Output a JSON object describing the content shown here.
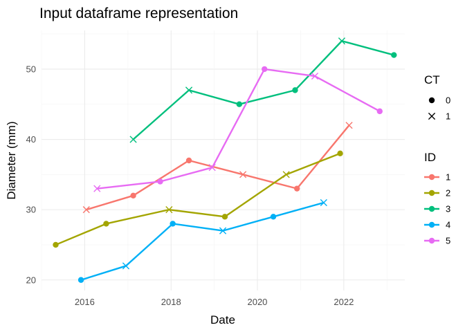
{
  "chart_data": {
    "type": "line",
    "title": "Input dataframe representation",
    "xlabel": "Date",
    "ylabel": "Diameter (mm)",
    "x_axis_type": "date",
    "xlim": [
      "2015-01-01",
      "2023-06-01"
    ],
    "ylim": [
      18.5,
      55.5
    ],
    "x_ticks": [
      "2016-01-01",
      "2018-01-01",
      "2020-01-01",
      "2022-01-01"
    ],
    "x_tick_labels": [
      "2016",
      "2018",
      "2020",
      "2022"
    ],
    "y_ticks": [
      20,
      30,
      40,
      50
    ],
    "y_tick_labels": [
      "20",
      "30",
      "40",
      "50"
    ],
    "grid": true,
    "legends": [
      {
        "title": "CT",
        "kind": "shape",
        "placement": "right",
        "entries": [
          {
            "label": "0",
            "shape": "circle"
          },
          {
            "label": "1",
            "shape": "cross"
          }
        ]
      },
      {
        "title": "ID",
        "kind": "color",
        "placement": "right",
        "entries": [
          {
            "label": "1",
            "color": "#F8766D"
          },
          {
            "label": "2",
            "color": "#A3A500"
          },
          {
            "label": "3",
            "color": "#00BF7D"
          },
          {
            "label": "4",
            "color": "#00B0F6"
          },
          {
            "label": "5",
            "color": "#E76BF3"
          }
        ]
      }
    ],
    "series": [
      {
        "name": "1",
        "color": "#F8766D",
        "points": [
          {
            "x": "2016-01-15",
            "y": 30,
            "ct": 1
          },
          {
            "x": "2017-02-15",
            "y": 32,
            "ct": 0
          },
          {
            "x": "2018-06-01",
            "y": 37,
            "ct": 0
          },
          {
            "x": "2019-09-01",
            "y": 35,
            "ct": 1
          },
          {
            "x": "2020-12-01",
            "y": 33,
            "ct": 0
          },
          {
            "x": "2022-02-15",
            "y": 42,
            "ct": 1
          }
        ]
      },
      {
        "name": "2",
        "color": "#A3A500",
        "points": [
          {
            "x": "2015-05-01",
            "y": 25,
            "ct": 0
          },
          {
            "x": "2016-07-01",
            "y": 28,
            "ct": 0
          },
          {
            "x": "2017-12-15",
            "y": 30,
            "ct": 1
          },
          {
            "x": "2019-04-01",
            "y": 29,
            "ct": 0
          },
          {
            "x": "2020-09-01",
            "y": 35,
            "ct": 1
          },
          {
            "x": "2021-12-01",
            "y": 38,
            "ct": 0
          }
        ]
      },
      {
        "name": "3",
        "color": "#00BF7D",
        "points": [
          {
            "x": "2017-02-15",
            "y": 40,
            "ct": 1
          },
          {
            "x": "2018-06-01",
            "y": 47,
            "ct": 1
          },
          {
            "x": "2019-08-01",
            "y": 45,
            "ct": 0
          },
          {
            "x": "2020-11-15",
            "y": 47,
            "ct": 0
          },
          {
            "x": "2021-12-15",
            "y": 54,
            "ct": 1
          },
          {
            "x": "2023-03-01",
            "y": 52,
            "ct": 0
          }
        ]
      },
      {
        "name": "4",
        "color": "#00B0F6",
        "points": [
          {
            "x": "2015-12-01",
            "y": 20,
            "ct": 0
          },
          {
            "x": "2016-12-15",
            "y": 22,
            "ct": 1
          },
          {
            "x": "2018-01-15",
            "y": 28,
            "ct": 0
          },
          {
            "x": "2019-03-15",
            "y": 27,
            "ct": 1
          },
          {
            "x": "2020-05-15",
            "y": 29,
            "ct": 0
          },
          {
            "x": "2021-07-15",
            "y": 31,
            "ct": 1
          }
        ]
      },
      {
        "name": "5",
        "color": "#E76BF3",
        "points": [
          {
            "x": "2016-04-15",
            "y": 33,
            "ct": 1
          },
          {
            "x": "2017-10-01",
            "y": 34,
            "ct": 0
          },
          {
            "x": "2018-12-15",
            "y": 36,
            "ct": 1
          },
          {
            "x": "2020-03-01",
            "y": 50,
            "ct": 0
          },
          {
            "x": "2021-05-01",
            "y": 49,
            "ct": 1
          },
          {
            "x": "2022-11-01",
            "y": 44,
            "ct": 0
          }
        ]
      }
    ]
  }
}
